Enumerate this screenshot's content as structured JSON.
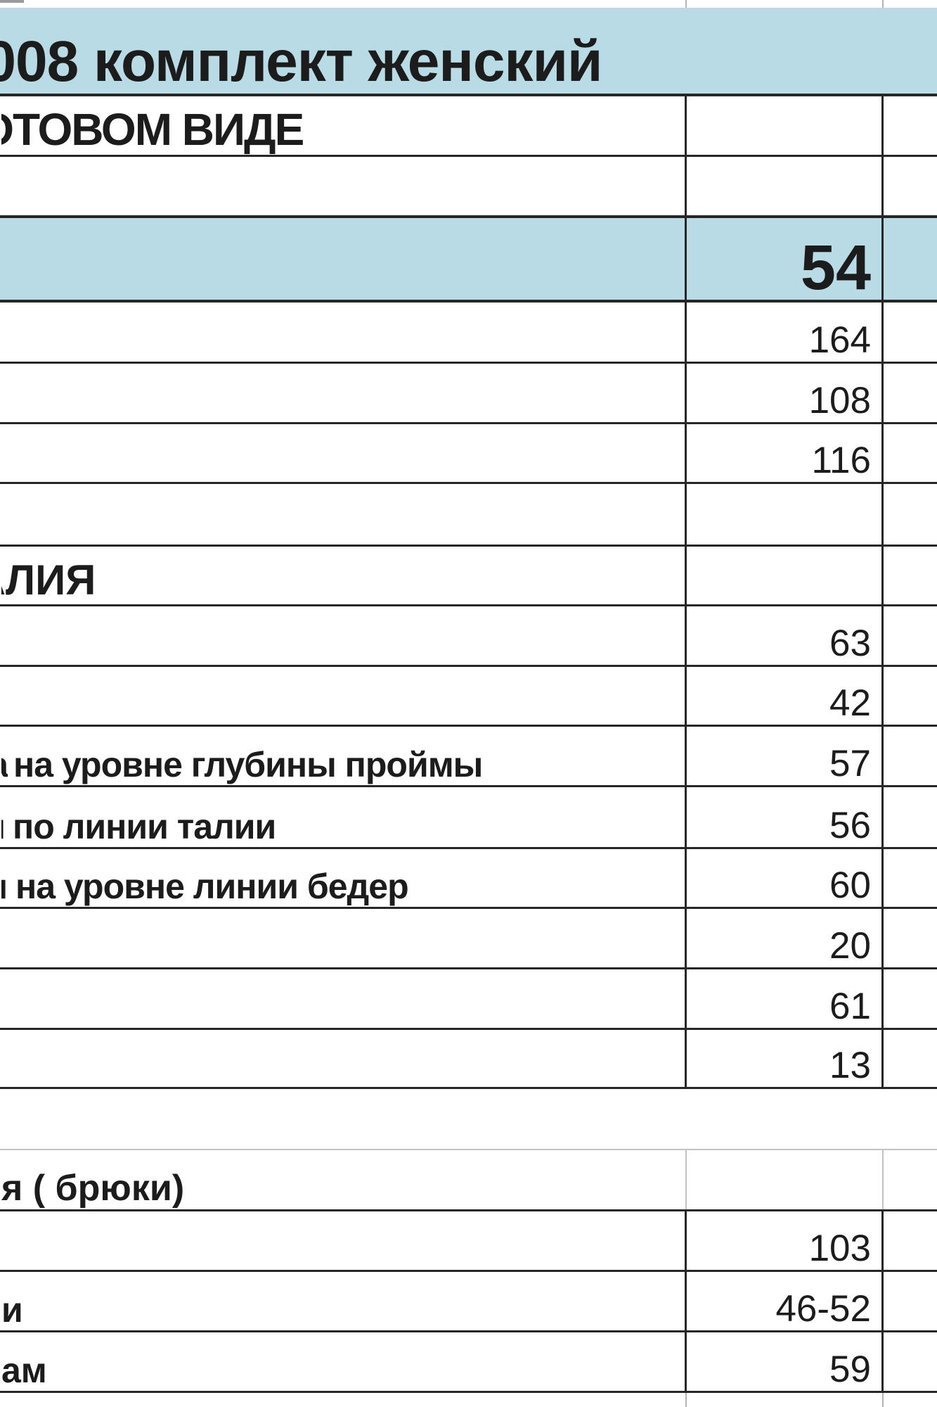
{
  "colors": {
    "highlight": "#b9dbe5",
    "grid_dark": "#262626",
    "grid_light": "#c2c2c2",
    "text": "#1c1c1c"
  },
  "table": {
    "description": "cropped size-measurement spreadsheet",
    "rows": [
      {},
      {
        "lead": "0",
        "label": "08 комплект женский"
      },
      {
        "lead": "О",
        "label": "ТОВОМ ВИДЕ"
      },
      {},
      {
        "value": "54"
      },
      {
        "value": "164"
      },
      {
        "value": "108"
      },
      {
        "value": "116"
      },
      {},
      {
        "lead": "А",
        "label": "ЛИЯ"
      },
      {
        "value": "63"
      },
      {
        "value": "42"
      },
      {
        "lead": "а",
        "label": "на уровне глубины проймы",
        "value": "57"
      },
      {
        "lead": "и",
        "label": "по линии талии",
        "value": "56"
      },
      {
        "lead": "я",
        "label": "на уровне линии бедер",
        "value": "60"
      },
      {
        "value": "20"
      },
      {
        "value": "61"
      },
      {
        "value": "13"
      },
      {},
      {
        "label": "я ( брюки)"
      },
      {
        "value": "103"
      },
      {
        "label": "и",
        "value": "46-52"
      },
      {
        "label": "ам",
        "value": "59"
      },
      {}
    ]
  }
}
